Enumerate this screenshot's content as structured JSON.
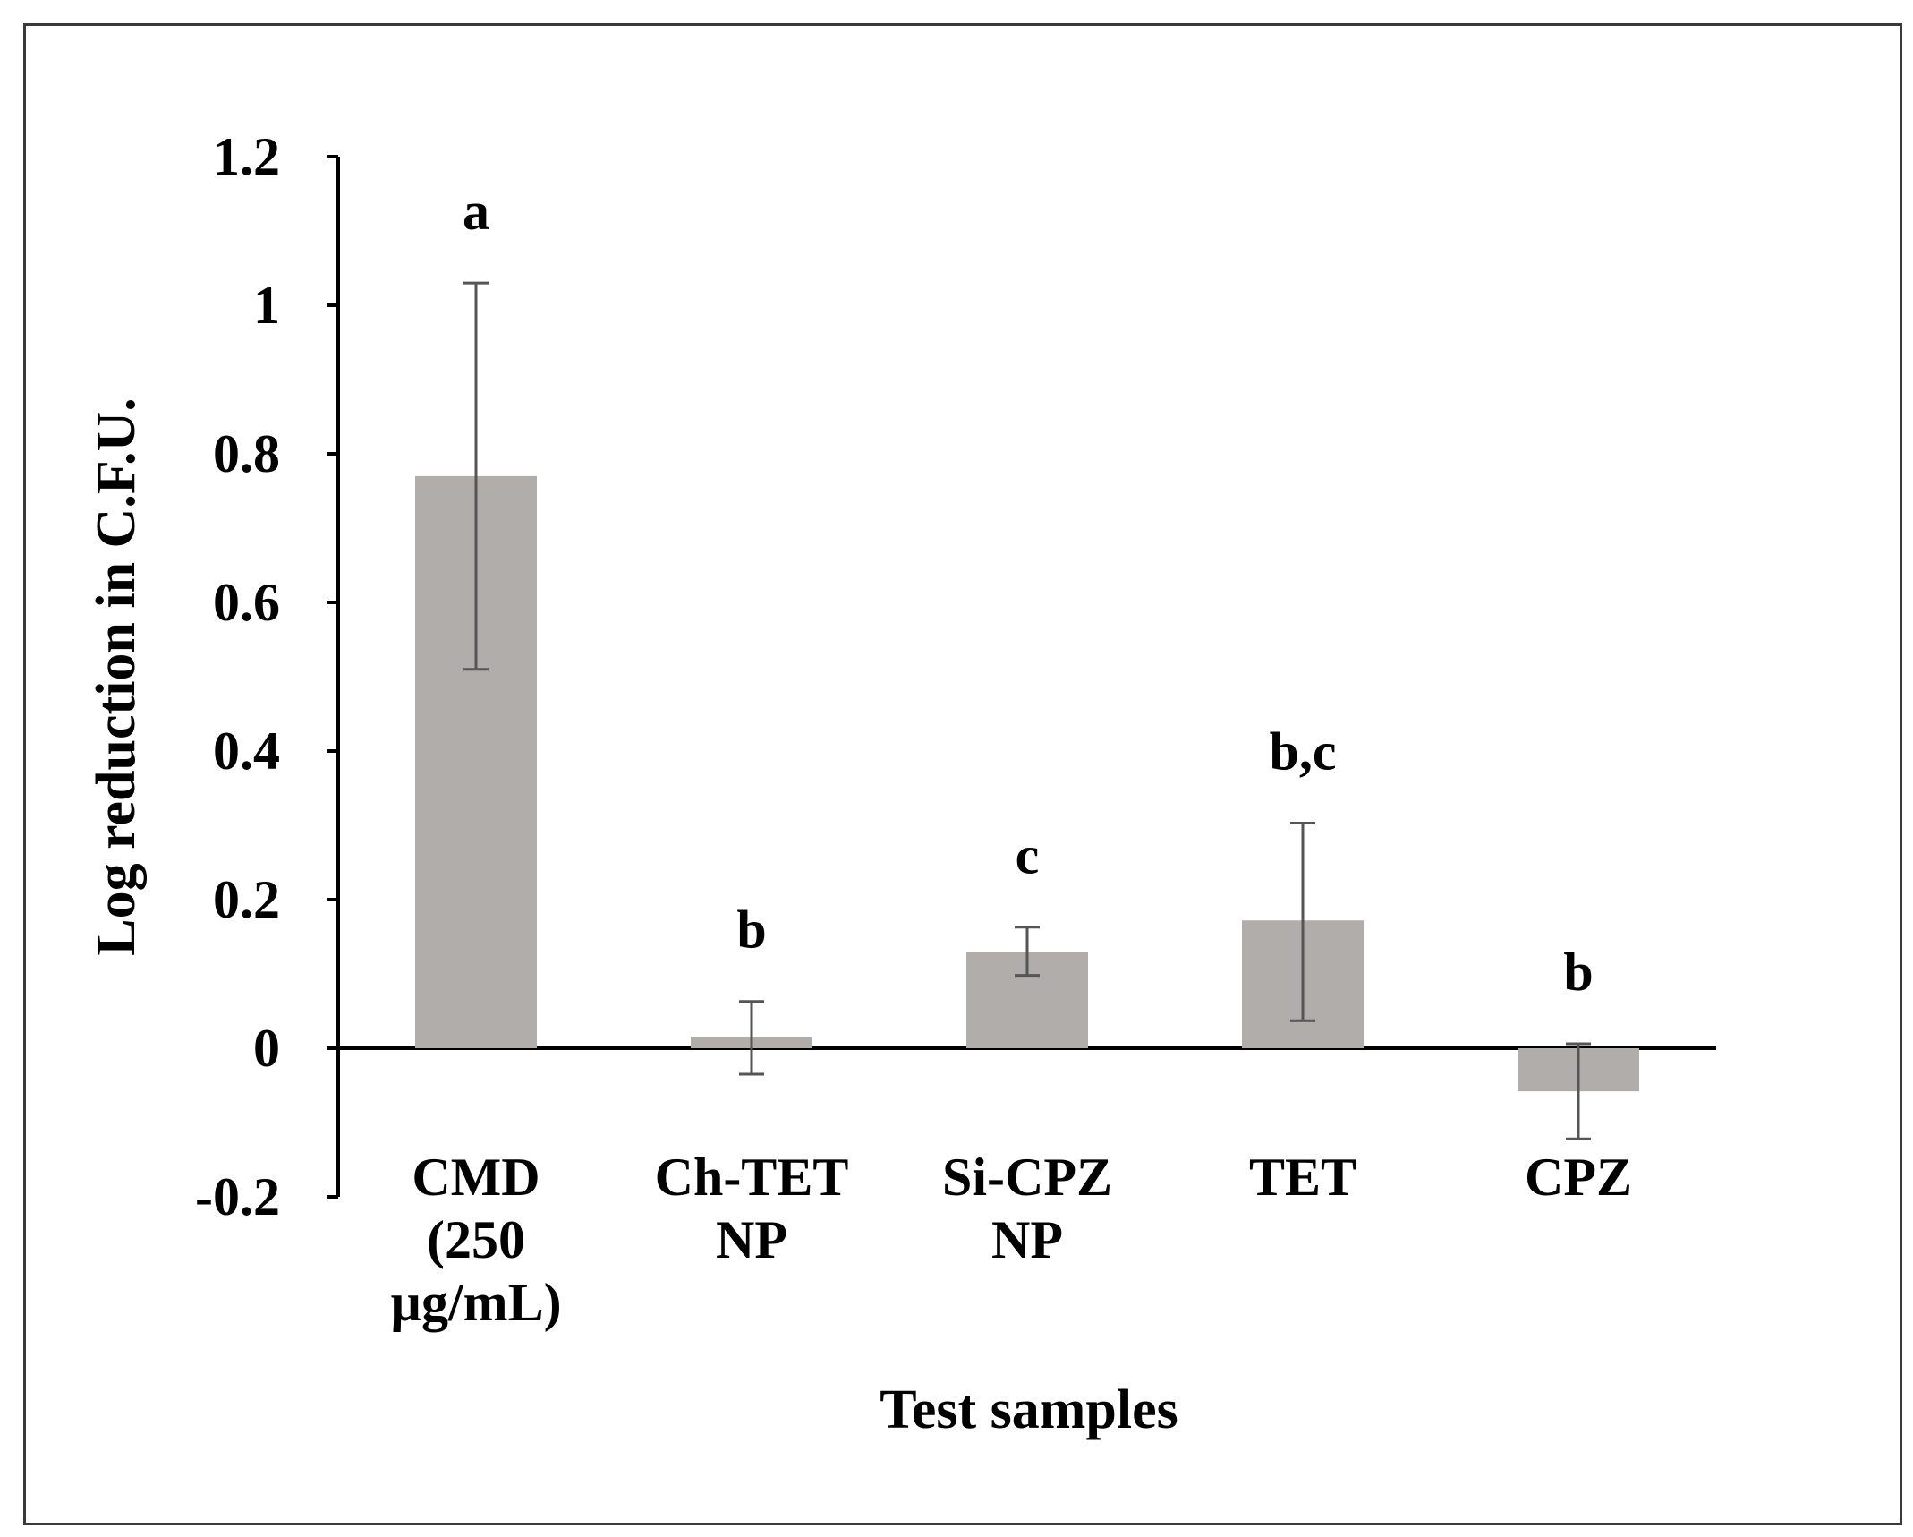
{
  "chart_data": {
    "type": "bar",
    "title": "",
    "xlabel": "Test samples",
    "ylabel": "Log reduction in C.F.U.",
    "ylim": [
      -0.2,
      1.2
    ],
    "yticks": [
      {
        "value": 1.2,
        "label": "1.2"
      },
      {
        "value": 1.0,
        "label": "1"
      },
      {
        "value": 0.8,
        "label": "0.8"
      },
      {
        "value": 0.6,
        "label": "0.6"
      },
      {
        "value": 0.4,
        "label": "0.4"
      },
      {
        "value": 0.2,
        "label": "0.2"
      },
      {
        "value": 0.0,
        "label": "0"
      },
      {
        "value": -0.2,
        "label": "-0.2"
      }
    ],
    "categories": [
      {
        "lines": [
          "CMD",
          "(250",
          "µg/mL)"
        ],
        "value": 0.77,
        "err_low": 0.51,
        "err_high": 1.03,
        "significance": "a"
      },
      {
        "lines": [
          "Ch-TET",
          "NP"
        ],
        "value": 0.015,
        "err_low": -0.035,
        "err_high": 0.063,
        "significance": "b"
      },
      {
        "lines": [
          "Si-CPZ",
          "NP"
        ],
        "value": 0.13,
        "err_low": 0.098,
        "err_high": 0.163,
        "significance": "c"
      },
      {
        "lines": [
          "TET"
        ],
        "value": 0.172,
        "err_low": 0.037,
        "err_high": 0.303,
        "significance": "b,c"
      },
      {
        "lines": [
          "CPZ"
        ],
        "value": -0.058,
        "err_low": -0.122,
        "err_high": 0.006,
        "significance": "b"
      }
    ],
    "bar_color": "#b0adab",
    "error_bar_color": "#555555",
    "axis_color": "#000000",
    "grid": false,
    "legend": "none"
  }
}
